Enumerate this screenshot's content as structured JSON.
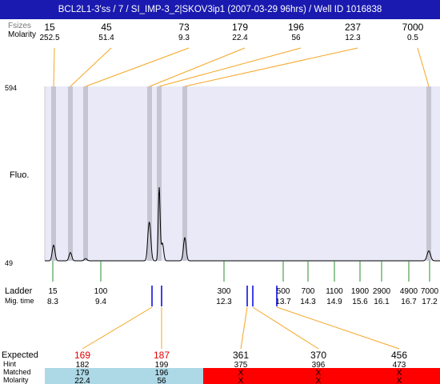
{
  "title": "BCL2L1-3'ss / 7 / SI_IMP-3_2|SKOV3ip1 (2007-03-29 96hrs) / Well ID 1016838",
  "labels": {
    "fsizes": "Fsizes",
    "molarity": "Molarity",
    "fluo": "Fluo.",
    "ladder": "Ladder",
    "mig_time": "Mig. time",
    "expected": "Expected",
    "hint": "Hint",
    "matched": "Matched",
    "molarity_bottom": "Molarity",
    "ymax": "594",
    "ymin": "49"
  },
  "top_peaks": [
    {
      "size": "15",
      "molarity": "252.5"
    },
    {
      "size": "45",
      "molarity": "51.4"
    },
    {
      "size": "73",
      "molarity": "9.3"
    },
    {
      "size": "179",
      "molarity": "22.4"
    },
    {
      "size": "196",
      "molarity": "56"
    },
    {
      "size": "237",
      "molarity": "12.3"
    },
    {
      "size": "7000",
      "molarity": "0.5"
    }
  ],
  "ladder": [
    {
      "size": "15",
      "time": "8.3"
    },
    {
      "size": "100",
      "time": "9.4"
    },
    {
      "size": "300",
      "time": "12.3"
    },
    {
      "size": "500",
      "time": "13.7"
    },
    {
      "size": "700",
      "time": "14.3"
    },
    {
      "size": "1100",
      "time": "14.9"
    },
    {
      "size": "1900",
      "time": "15.6"
    },
    {
      "size": "2900",
      "time": "16.1"
    },
    {
      "size": "4900",
      "time": "16.7"
    },
    {
      "size": "7000",
      "time": "17.2"
    }
  ],
  "expected": [
    {
      "size": "169",
      "hint": "182",
      "matched": "179",
      "molarity": "22.4",
      "status": "matched"
    },
    {
      "size": "187",
      "hint": "199",
      "matched": "196",
      "molarity": "56",
      "status": "matched"
    },
    {
      "size": "361",
      "hint": "375",
      "matched": "X",
      "molarity": "X",
      "status": "missing"
    },
    {
      "size": "370",
      "hint": "396",
      "matched": "X",
      "molarity": "X",
      "status": "missing"
    },
    {
      "size": "456",
      "hint": "473",
      "matched": "X",
      "molarity": "X",
      "status": "missing"
    }
  ],
  "colors": {
    "title_bg": "#1a1ab0",
    "plot_bg": "#e9e9f7",
    "band": "#c6c6d3",
    "connector": "#f5a623",
    "ladder_tick": "#2e8b2e",
    "expected_tick": "#0000dd",
    "expected_text": "#e00000",
    "matched_bg": "#add8e6",
    "missing_bg": "#ff0000"
  },
  "chart_data": {
    "type": "line",
    "title": "",
    "ylim": [
      49,
      594
    ],
    "peaks": [
      {
        "size": 15,
        "height": 49
      },
      {
        "size": 45,
        "height": 26
      },
      {
        "size": 73,
        "height": 7
      },
      {
        "size": 179,
        "height": 110
      },
      {
        "size": 196,
        "height": 228
      },
      {
        "size": 237,
        "height": 72
      },
      {
        "size": 7000,
        "height": 31
      }
    ]
  }
}
